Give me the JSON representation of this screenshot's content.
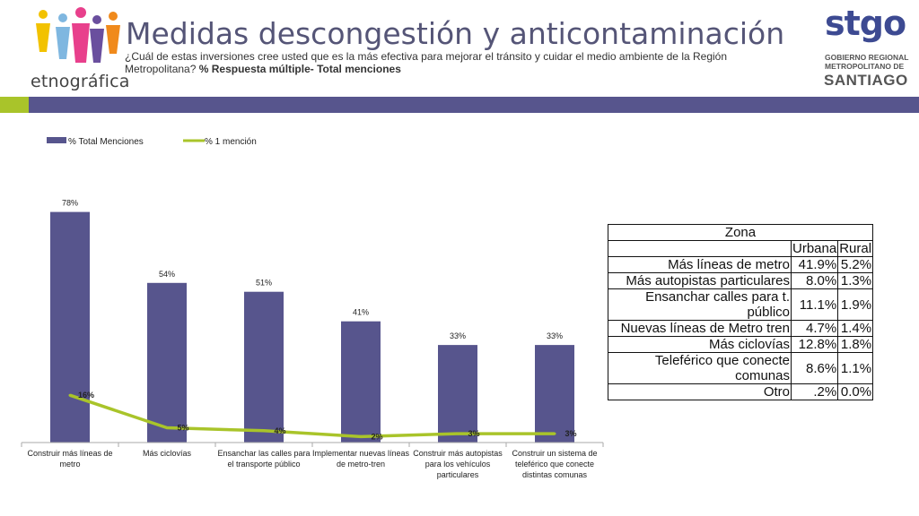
{
  "header": {
    "title": "Medidas descongestión y anticontaminación",
    "question": "¿Cuál de estas inversiones cree usted que es la más efectiva para mejorar el tránsito y cuidar el medio ambiente de la Región Metropolitana?",
    "question_bold": "% Respuesta múltiple- Total menciones"
  },
  "logos": {
    "left_name": "etnográfica",
    "left_icon": "people-figures-logo",
    "right_name": "stgo",
    "right_line1": "GOBIERNO REGIONAL",
    "right_line2": "METROPOLITANO DE",
    "right_line3": "SANTIAGO"
  },
  "colors": {
    "bar": "#57558d",
    "line": "#a9c42a",
    "band_green": "#a9c42a",
    "band_purple": "#57558d",
    "title": "#555577"
  },
  "chart_data": {
    "type": "bar",
    "categories": [
      "Construir más líneas de metro",
      "Más ciclovías",
      "Ensanchar las calles para el transporte público",
      "Implementar nuevas líneas de metro-tren",
      "Construir más autopistas para los vehículos particulares",
      "Construir un sistema de teleférico que conecte distintas comunas"
    ],
    "series": [
      {
        "name": "% Total Menciones",
        "type": "bar",
        "values": [
          78,
          54,
          51,
          41,
          33,
          33
        ],
        "labels": [
          "78%",
          "54%",
          "51%",
          "41%",
          "33%",
          "33%"
        ]
      },
      {
        "name": "% 1 mención",
        "type": "line",
        "values": [
          16,
          5,
          4,
          2,
          3,
          3
        ],
        "labels": [
          "16%",
          "5%",
          "4%",
          "2%",
          "3%",
          "3%"
        ]
      }
    ],
    "ylim": [
      0,
      80
    ],
    "grid": false,
    "legend": "top-left"
  },
  "table": {
    "title": "Zona",
    "columns": [
      "Urbana",
      "Rural"
    ],
    "rows": [
      {
        "label": "Más líneas de metro",
        "values": [
          "41.9%",
          "5.2%"
        ]
      },
      {
        "label": "Más autopistas particulares",
        "values": [
          "8.0%",
          "1.3%"
        ]
      },
      {
        "label": "Ensanchar calles para t. público",
        "values": [
          "11.1%",
          "1.9%"
        ]
      },
      {
        "label": "Nuevas líneas de Metro tren",
        "values": [
          "4.7%",
          "1.4%"
        ]
      },
      {
        "label": "Más ciclovías",
        "values": [
          "12.8%",
          "1.8%"
        ]
      },
      {
        "label": "Teleférico que conecte comunas",
        "values": [
          "8.6%",
          "1.1%"
        ]
      },
      {
        "label": "Otro",
        "values": [
          ".2%",
          "0.0%"
        ]
      }
    ]
  }
}
